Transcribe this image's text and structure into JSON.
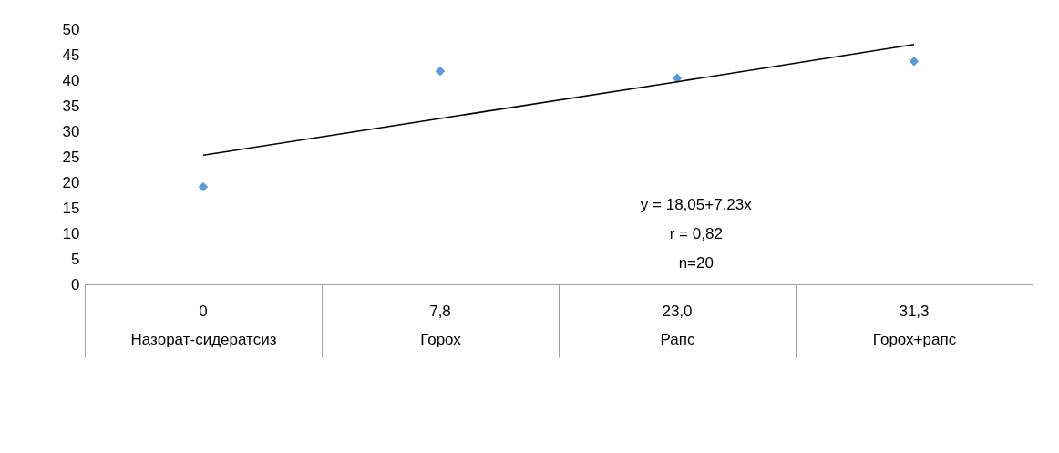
{
  "chart_data": {
    "type": "scatter",
    "categories": [
      "Назорат-сидератсиз",
      "Горох",
      "Рапс",
      "Горох+рапс"
    ],
    "series": [
      {
        "type": "scatter",
        "color": "#5b9bd5",
        "marker": "diamond",
        "values": [
          19.1,
          41.8,
          40.4,
          43.7
        ]
      },
      {
        "type": "line",
        "color": "#000000",
        "marker": "none",
        "line_style": "solid",
        "values": [
          25.3,
          32.5,
          39.7,
          47.0
        ]
      }
    ],
    "ylim": [
      0,
      50
    ],
    "yticks": [
      0,
      5,
      10,
      15,
      20,
      25,
      30,
      35,
      40,
      45,
      50
    ],
    "grid": false,
    "annotations": [
      "0",
      "7,8",
      "23,0",
      "31,3",
      "y = 18,05+7,23x",
      "r = 0,82",
      "n=20"
    ]
  }
}
